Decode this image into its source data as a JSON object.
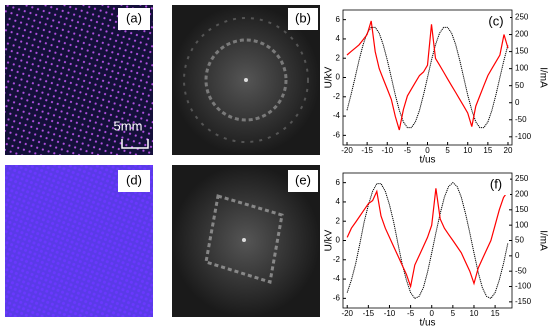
{
  "panels": [
    {
      "label": "(a)"
    },
    {
      "label": "(b)"
    },
    {
      "label": "(d)"
    },
    {
      "label": "(e)"
    }
  ],
  "scale_bar": "5mm",
  "chart_data": [
    {
      "type": "line",
      "label": "(c)",
      "x_label": "t/us",
      "y_label": "U/kV",
      "y2_label": "I/mA",
      "xlim": [
        -21,
        21
      ],
      "xticks": [
        -20,
        -15,
        -10,
        -5,
        0,
        5,
        10,
        15,
        20
      ],
      "ylim": [
        -7,
        7
      ],
      "yticks": [
        -6,
        -4,
        -2,
        0,
        2,
        4,
        6
      ],
      "y2lim": [
        -124,
        272
      ],
      "y2ticks": [
        -100,
        -50,
        0,
        50,
        100,
        150,
        200,
        250
      ],
      "x": [
        -20,
        -19,
        -18,
        -17,
        -16,
        -15,
        -14,
        -13,
        -12,
        -11,
        -10,
        -9,
        -8,
        -7,
        -6,
        -5,
        -4,
        -3,
        -2,
        -1,
        0,
        1,
        2,
        3,
        4,
        5,
        6,
        7,
        8,
        9,
        10,
        11,
        12,
        13,
        14,
        15,
        16,
        17,
        18,
        19,
        20
      ],
      "series": [
        {
          "color": "#000000",
          "values": [
            -3.4,
            -1.8,
            0,
            1.8,
            3.4,
            4.6,
            5.2,
            5.2,
            4.6,
            3.4,
            1.8,
            0,
            -1.8,
            -3.4,
            -4.6,
            -5.2,
            -5.2,
            -4.6,
            -3.4,
            -1.8,
            0,
            1.8,
            3.4,
            4.6,
            5.2,
            5.2,
            4.6,
            3.4,
            1.8,
            0,
            -1.8,
            -3.4,
            -4.6,
            -5.2,
            -5.2,
            -4.6,
            -3.4,
            -1.8,
            0,
            1.8,
            3.4
          ]
        },
        {
          "color": "#ff0000",
          "axis": "y2",
          "values": [
            140,
            150,
            160,
            170,
            185,
            200,
            240,
            150,
            100,
            70,
            40,
            10,
            -40,
            -80,
            -20,
            20,
            40,
            60,
            80,
            90,
            110,
            230,
            130,
            110,
            90,
            70,
            50,
            30,
            10,
            -10,
            -30,
            -70,
            -10,
            20,
            50,
            80,
            100,
            120,
            140,
            200,
            160
          ]
        }
      ]
    },
    {
      "type": "line",
      "label": "(f)",
      "x_label": "t/us",
      "y_label": "U/kV",
      "y2_label": "I/mA",
      "xlim": [
        -21,
        19
      ],
      "xticks": [
        -20,
        -15,
        -10,
        -5,
        0,
        5,
        10,
        15
      ],
      "ylim": [
        -7,
        7
      ],
      "yticks": [
        -6,
        -4,
        -2,
        0,
        2,
        4,
        6
      ],
      "y2lim": [
        -170,
        270
      ],
      "y2ticks": [
        -150,
        -100,
        -50,
        0,
        50,
        100,
        150,
        200,
        250
      ],
      "x": [
        -20,
        -19,
        -18,
        -17,
        -16,
        -15,
        -14,
        -13,
        -12,
        -11,
        -10,
        -9,
        -8,
        -7,
        -6,
        -5,
        -4,
        -3,
        -2,
        -1,
        0,
        1,
        2,
        3,
        4,
        5,
        6,
        7,
        8,
        9,
        10,
        11,
        12,
        13,
        14,
        15,
        16,
        17,
        18
      ],
      "series": [
        {
          "color": "#000000",
          "values": [
            -5.4,
            -4.1,
            -2.4,
            -0.3,
            1.9,
            3.7,
            5.1,
            5.9,
            5.9,
            5.1,
            3.7,
            1.9,
            -0.3,
            -2.4,
            -4.1,
            -5.4,
            -6.0,
            -5.8,
            -4.9,
            -3.3,
            -1.3,
            0.8,
            2.8,
            4.5,
            5.6,
            6.0,
            5.6,
            4.5,
            2.8,
            0.8,
            -1.3,
            -3.3,
            -4.9,
            -5.8,
            -6.0,
            -5.4,
            -4.1,
            -2.4,
            -0.3
          ]
        },
        {
          "color": "#ff0000",
          "axis": "y2",
          "values": [
            60,
            90,
            110,
            130,
            150,
            170,
            180,
            210,
            130,
            90,
            60,
            30,
            0,
            -30,
            -60,
            -100,
            -30,
            0,
            30,
            60,
            100,
            220,
            120,
            90,
            70,
            50,
            30,
            10,
            -20,
            -50,
            -90,
            -40,
            -10,
            20,
            50,
            100,
            150,
            190,
            210
          ]
        }
      ]
    }
  ]
}
